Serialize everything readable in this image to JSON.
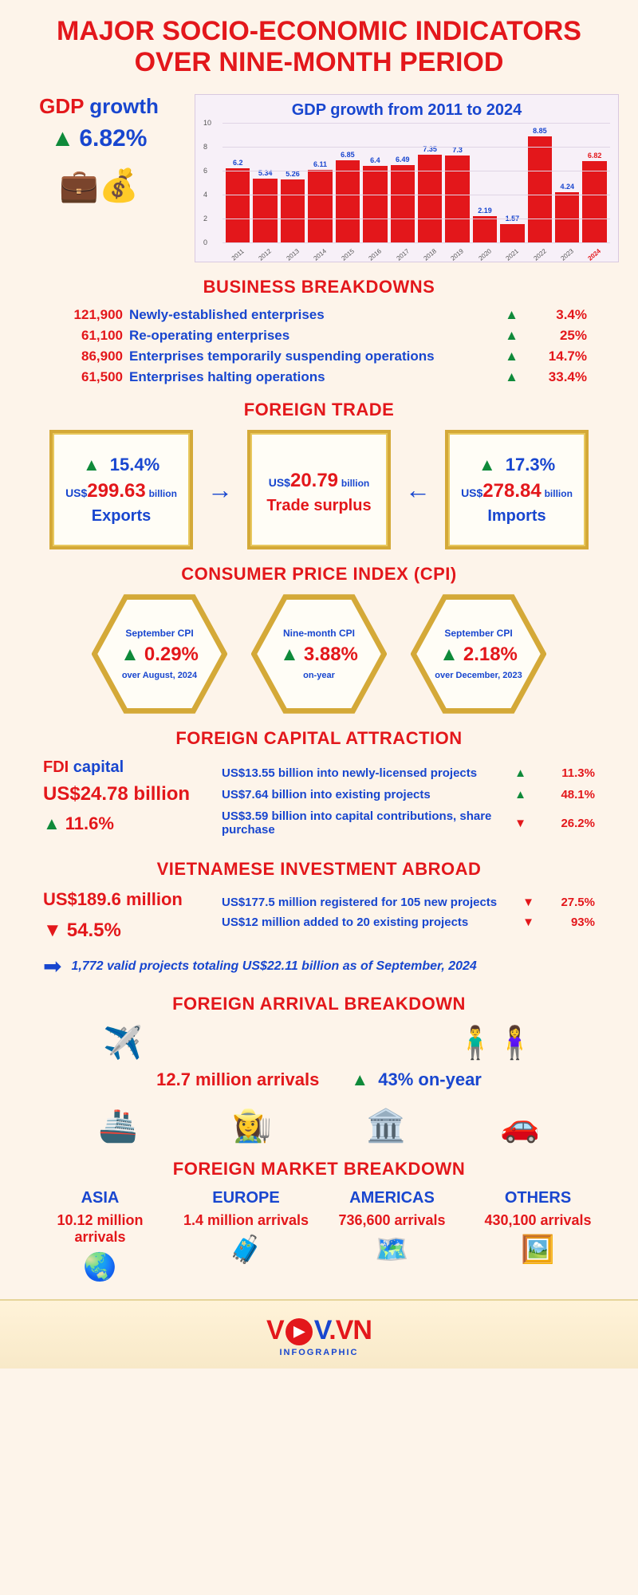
{
  "title": "MAJOR SOCIO-ECONOMIC INDICATORS OVER NINE-MONTH PERIOD",
  "gdp": {
    "label_gdp": "GDP",
    "label_growth": "growth",
    "pct": "6.82%",
    "chart": {
      "title": "GDP growth from 2011 to 2024",
      "years": [
        "2011",
        "2012",
        "2013",
        "2014",
        "2015",
        "2016",
        "2017",
        "2018",
        "2019",
        "2020",
        "2021",
        "2022",
        "2023",
        "2024"
      ],
      "values": [
        6.2,
        5.34,
        5.26,
        6.11,
        6.85,
        6.4,
        6.49,
        7.35,
        7.3,
        2.19,
        1.57,
        8.85,
        4.24,
        6.82
      ],
      "ymax": 10,
      "ytick_step": 2,
      "bar_color": "#e3171b",
      "highlight_index": 13,
      "highlight_color": "#e3171b",
      "bg": "#f7f0f8"
    }
  },
  "business": {
    "title": "BUSINESS BREAKDOWNS",
    "rows": [
      {
        "num": "121,900",
        "label": "Newly-established enterprises",
        "dir": "up",
        "pct": "3.4%"
      },
      {
        "num": "61,100",
        "label": "Re-operating enterprises",
        "dir": "up",
        "pct": "25%"
      },
      {
        "num": "86,900",
        "label": "Enterprises temporarily suspending operations",
        "dir": "up",
        "pct": "14.7%"
      },
      {
        "num": "61,500",
        "label": "Enterprises halting operations",
        "dir": "up",
        "pct": "33.4%"
      }
    ]
  },
  "trade": {
    "title": "FOREIGN TRADE",
    "exports": {
      "pct": "15.4%",
      "prefix": "US$",
      "val": "299.63",
      "unit": "billion",
      "name": "Exports"
    },
    "surplus": {
      "prefix": "US$",
      "val": "20.79",
      "unit": "billion",
      "name": "Trade surplus"
    },
    "imports": {
      "pct": "17.3%",
      "prefix": "US$",
      "val": "278.84",
      "unit": "billion",
      "name": "Imports"
    }
  },
  "cpi": {
    "title": "CONSUMER PRICE INDEX (CPI)",
    "items": [
      {
        "top": "September CPI",
        "val": "0.29%",
        "bot": "over August, 2024"
      },
      {
        "top": "Nine-month CPI",
        "val": "3.88%",
        "bot": "on-year"
      },
      {
        "top": "September CPI",
        "val": "2.18%",
        "bot": "over December, 2023"
      }
    ]
  },
  "fdi": {
    "title": "FOREIGN CAPITAL ATTRACTION",
    "left": {
      "lbl_r": "FDI",
      "lbl_b": "capital",
      "amt": "US$24.78 billion",
      "pct": "11.6%"
    },
    "lines": [
      {
        "txt": "US$13.55 billion into newly-licensed projects",
        "dir": "up",
        "pct": "11.3%"
      },
      {
        "txt": "US$7.64 billion into existing projects",
        "dir": "up",
        "pct": "48.1%"
      },
      {
        "txt": "US$3.59 billion into capital contributions, share purchase",
        "dir": "down",
        "pct": "26.2%"
      }
    ]
  },
  "via": {
    "title": "VIETNAMESE INVESTMENT ABROAD",
    "left": {
      "amt": "US$189.6 million",
      "pct": "54.5%"
    },
    "lines": [
      {
        "txt": "US$177.5 million registered for 105 new projects",
        "dir": "down",
        "pct": "27.5%"
      },
      {
        "txt": "US$12 million added to 20 existing projects",
        "dir": "down",
        "pct": "93%"
      }
    ],
    "note": "1,772 valid projects totaling US$22.11 billion as of September, 2024"
  },
  "arrivals": {
    "title": "FOREIGN ARRIVAL BREAKDOWN",
    "big": "12.7 million arrivals",
    "pct": "43% on-year"
  },
  "markets": {
    "title": "FOREIGN MARKET BREAKDOWN",
    "cols": [
      {
        "name": "ASIA",
        "val": "10.12 million arrivals",
        "icon": "🌏"
      },
      {
        "name": "EUROPE",
        "val": "1.4 million arrivals",
        "icon": "🧳"
      },
      {
        "name": "AMERICAS",
        "val": "736,600 arrivals",
        "icon": "🗺️"
      },
      {
        "name": "OTHERS",
        "val": "430,100 arrivals",
        "icon": "🖼️"
      }
    ]
  },
  "footer": {
    "sub": "INFOGRAPHIC"
  },
  "colors": {
    "red": "#e3171b",
    "blue": "#1846cf",
    "green": "#0f8a3a",
    "gold": "#d4a938",
    "bg": "#fdf4ea"
  },
  "glyphs": {
    "up": "▲",
    "down": "▼",
    "right": "➡",
    "left": "⬅"
  }
}
